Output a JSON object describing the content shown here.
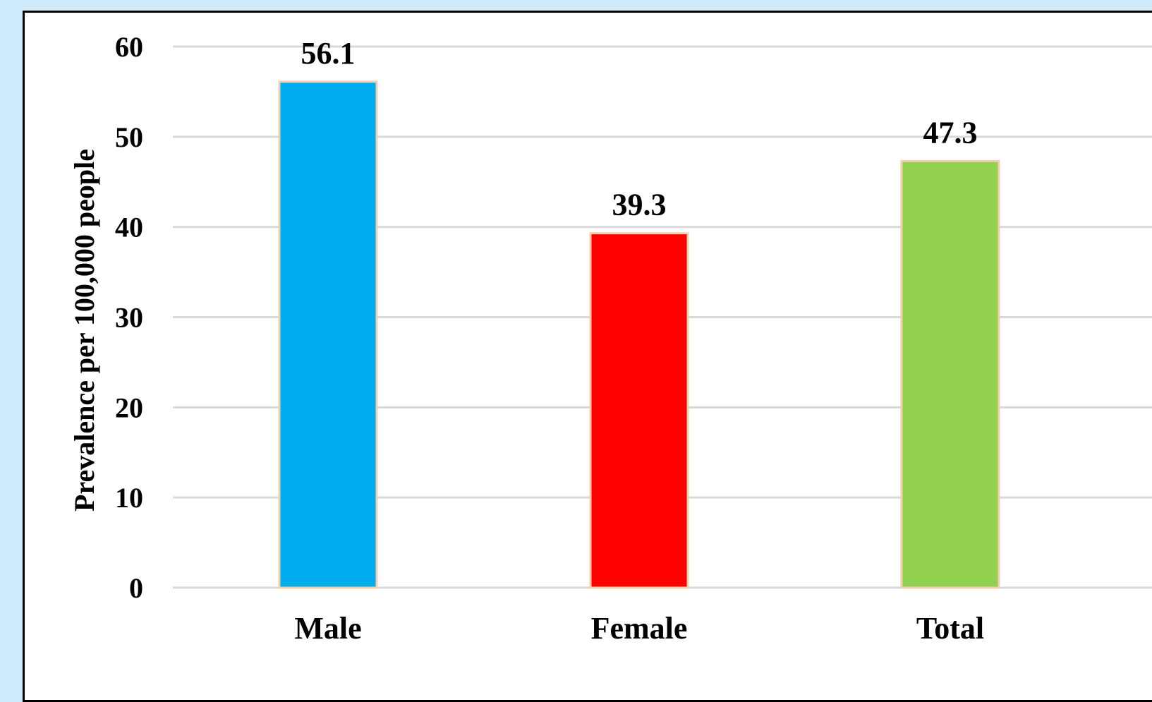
{
  "chart_data": {
    "type": "bar",
    "title": "",
    "xlabel": "",
    "ylabel": "Prevalence per 100,000 people",
    "categories": [
      "Male",
      "Female",
      "Total"
    ],
    "values": [
      56.1,
      39.3,
      47.3
    ],
    "value_labels": [
      "56.1",
      "39.3",
      "47.3"
    ],
    "colors": [
      "#00aeef",
      "#ff0000",
      "#92d050"
    ],
    "bar_edge_color": "#f4cfae",
    "ylim": [
      0,
      60
    ],
    "yticks": [
      0,
      10,
      20,
      30,
      40,
      50,
      60
    ],
    "grid": true,
    "legend": "none"
  }
}
